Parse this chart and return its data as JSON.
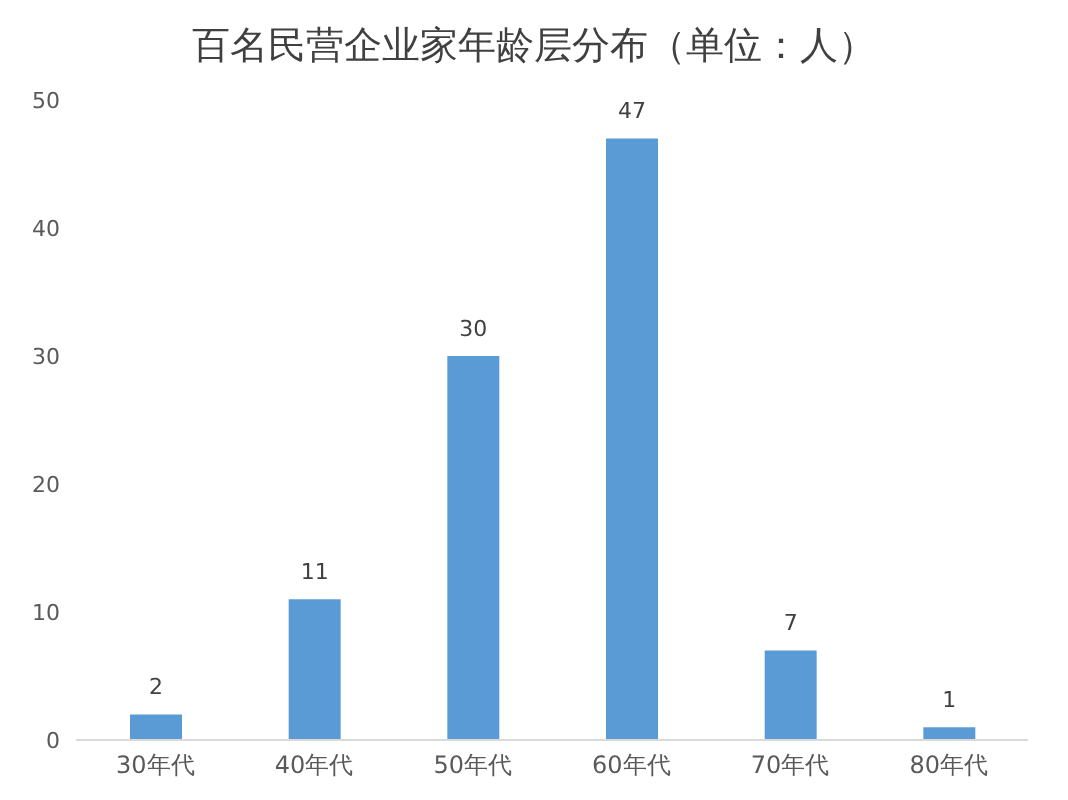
{
  "chart_data": {
    "type": "bar",
    "title": "百名民营企业家年龄层分布（单位：人）",
    "categories": [
      "30年代",
      "40年代",
      "50年代",
      "60年代",
      "70年代",
      "80年代"
    ],
    "values": [
      2,
      11,
      30,
      47,
      7,
      1
    ],
    "color": "#5b9bd5",
    "ylim": [
      0,
      50
    ],
    "yticks": [
      0,
      10,
      20,
      30,
      40,
      50
    ],
    "grid": false,
    "data_labels": true
  }
}
